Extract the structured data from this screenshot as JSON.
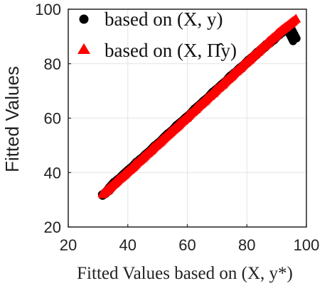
{
  "chart_data": {
    "type": "scatter",
    "xlabel": "Fitted Values based on (X, y*)",
    "ylabel": "Fitted Values",
    "xlim": [
      20,
      100
    ],
    "ylim": [
      20,
      100
    ],
    "x_ticks": [
      20,
      40,
      60,
      80,
      100
    ],
    "y_ticks": [
      20,
      40,
      60,
      80,
      100
    ],
    "grid": true,
    "legend_position": "top-left",
    "series": [
      {
        "name": "based on (X, y)",
        "marker": "circle",
        "color": "#000000",
        "points": [
          [
            32.0,
            32.2
          ],
          [
            33.2,
            33.0
          ],
          [
            34.5,
            35.0
          ],
          [
            36.0,
            36.8
          ],
          [
            37.5,
            37.9
          ],
          [
            39.0,
            39.6
          ],
          [
            40.5,
            41.1
          ],
          [
            42.0,
            42.4
          ],
          [
            43.5,
            44.2
          ],
          [
            45.0,
            45.3
          ],
          [
            46.5,
            47.0
          ],
          [
            48.0,
            48.3
          ],
          [
            49.5,
            50.1
          ],
          [
            51.0,
            51.2
          ],
          [
            52.5,
            53.0
          ],
          [
            54.0,
            54.6
          ],
          [
            55.5,
            55.8
          ],
          [
            57.0,
            57.7
          ],
          [
            58.5,
            58.9
          ],
          [
            60.0,
            60.5
          ],
          [
            61.5,
            61.8
          ],
          [
            63.0,
            63.7
          ],
          [
            64.5,
            65.0
          ],
          [
            66.0,
            66.6
          ],
          [
            67.5,
            67.9
          ],
          [
            69.0,
            69.8
          ],
          [
            70.5,
            71.0
          ],
          [
            72.0,
            72.6
          ],
          [
            73.5,
            73.9
          ],
          [
            75.0,
            75.8
          ],
          [
            76.5,
            76.9
          ],
          [
            78.0,
            78.6
          ],
          [
            79.5,
            79.8
          ],
          [
            81.0,
            81.6
          ],
          [
            82.5,
            82.7
          ],
          [
            84.0,
            84.5
          ],
          [
            85.5,
            85.6
          ],
          [
            87.0,
            87.4
          ],
          [
            88.5,
            88.3
          ],
          [
            90.0,
            90.2
          ],
          [
            91.5,
            91.2
          ],
          [
            93.0,
            92.8
          ],
          [
            94.0,
            93.2
          ],
          [
            96.0,
            89.0
          ]
        ]
      },
      {
        "name": "based on (X, Π̂y)",
        "marker": "triangle",
        "color": "#ff0000",
        "points": [
          [
            32.0,
            32.5
          ],
          [
            33.0,
            33.4
          ],
          [
            34.0,
            34.6
          ],
          [
            35.5,
            35.9
          ],
          [
            37.0,
            37.6
          ],
          [
            38.5,
            38.8
          ],
          [
            40.0,
            40.5
          ],
          [
            41.5,
            41.7
          ],
          [
            43.0,
            43.6
          ],
          [
            44.5,
            44.8
          ],
          [
            46.0,
            46.5
          ],
          [
            47.5,
            47.8
          ],
          [
            49.0,
            49.6
          ],
          [
            50.5,
            50.8
          ],
          [
            52.0,
            52.5
          ],
          [
            53.5,
            53.9
          ],
          [
            55.0,
            55.5
          ],
          [
            56.5,
            56.8
          ],
          [
            58.0,
            58.6
          ],
          [
            59.5,
            59.8
          ],
          [
            61.0,
            61.6
          ],
          [
            62.5,
            62.9
          ],
          [
            64.0,
            64.7
          ],
          [
            65.5,
            65.9
          ],
          [
            67.0,
            67.7
          ],
          [
            68.5,
            68.9
          ],
          [
            70.0,
            70.8
          ],
          [
            71.5,
            71.9
          ],
          [
            73.0,
            73.8
          ],
          [
            74.5,
            75.0
          ],
          [
            76.0,
            76.9
          ],
          [
            77.5,
            78.0
          ],
          [
            79.0,
            79.9
          ],
          [
            80.5,
            81.0
          ],
          [
            82.0,
            82.9
          ],
          [
            83.5,
            84.0
          ],
          [
            85.0,
            85.9
          ],
          [
            86.5,
            87.0
          ],
          [
            88.0,
            88.9
          ],
          [
            89.5,
            90.0
          ],
          [
            91.0,
            91.8
          ],
          [
            92.5,
            93.0
          ],
          [
            94.0,
            94.2
          ],
          [
            96.0,
            96.0
          ]
        ]
      }
    ]
  }
}
